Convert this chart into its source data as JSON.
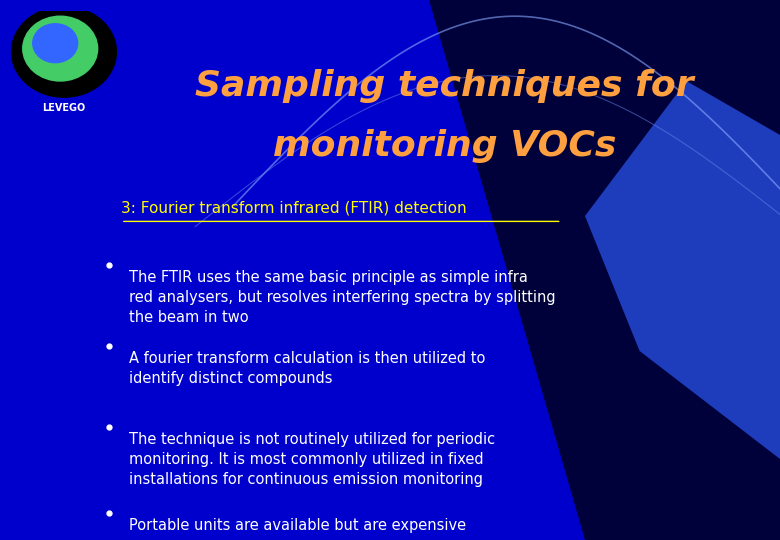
{
  "title_line1": "Sampling techniques for",
  "title_line2": "monitoring VOCs",
  "title_color": "#FFA040",
  "subtitle": "3: Fourier transform infrared (FTIR) detection",
  "subtitle_color": "#FFFF00",
  "bullet_points": [
    "The FTIR uses the same basic principle as simple infra\nred analysers, but resolves interfering spectra by splitting\nthe beam in two",
    "A fourier transform calculation is then utilized to\nidentify distinct compounds",
    "The technique is not routinely utilized for periodic\nmonitoring. It is most commonly utilized in fixed\ninstallations for continuous emission monitoring",
    "Portable units are available but are expensive"
  ],
  "bullet_color": "#FFFFFF",
  "bg_color_left": "#0000CC",
  "bg_color_right": "#000033",
  "logo_text": "LEVEGO",
  "logo_color": "#FFFFFF",
  "figsize": [
    7.8,
    5.4
  ],
  "dpi": 100
}
